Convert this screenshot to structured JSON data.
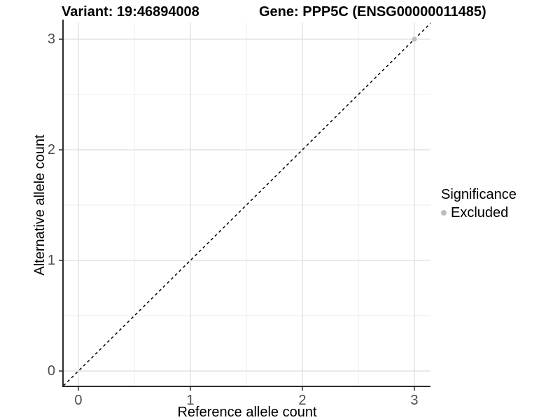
{
  "chart_data": {
    "type": "scatter",
    "titles": {
      "left": "Variant: 19:46894008",
      "right": "Gene: PPP5C (ENSG00000011485)"
    },
    "xlabel": "Reference allele count",
    "ylabel": "Alternative allele count",
    "x_ticks": [
      0,
      1,
      2,
      3
    ],
    "y_ticks": [
      0,
      1,
      2,
      3
    ],
    "x_minor_ticks": [
      0.5,
      1.5,
      2.5
    ],
    "y_minor_ticks": [
      0.5,
      1.5,
      2.5
    ],
    "xlim": [
      -0.131,
      3.144
    ],
    "ylim": [
      -0.139,
      3.152
    ],
    "grid": "major+minor",
    "reference_line": {
      "type": "identity",
      "slope": 1,
      "intercept": 0,
      "linetype": "dashed",
      "color": "#000000"
    },
    "series": [
      {
        "name": "Excluded",
        "color": "#bebebe",
        "points": [
          {
            "x": 3,
            "y": 3
          }
        ]
      }
    ],
    "legend": {
      "title": "Significance",
      "position": "right",
      "items": [
        {
          "label": "Excluded",
          "color": "#bebebe"
        }
      ]
    },
    "colors": {
      "background": "#ffffff",
      "major_grid": "#e3e3e3",
      "minor_grid": "#ededed",
      "axis_line": "#2b2b2b",
      "tick_label": "#4d4d4d",
      "title_text": "#000000"
    }
  }
}
